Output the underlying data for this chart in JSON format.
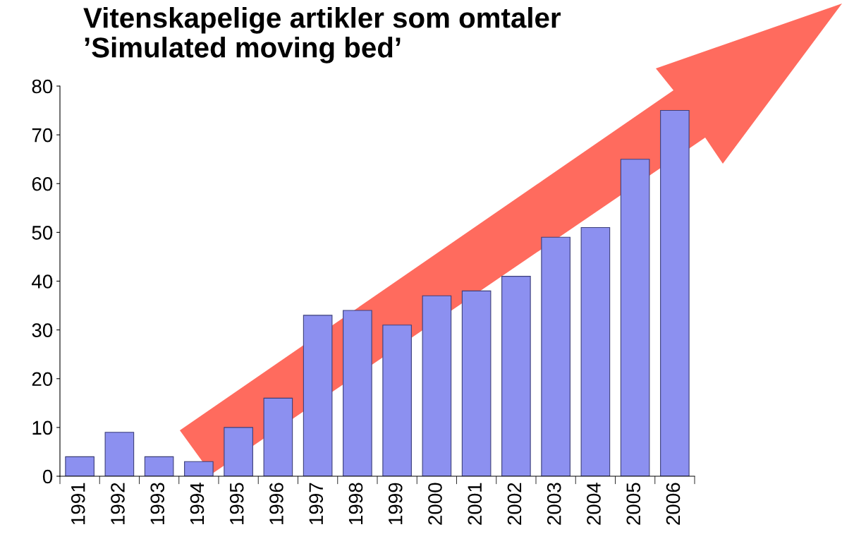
{
  "chart_data": {
    "type": "bar",
    "title": "Vitenskapelige artikler som omtaler\n’Simulated moving bed’",
    "categories": [
      "1991",
      "1992",
      "1993",
      "1994",
      "1995",
      "1996",
      "1997",
      "1998",
      "1999",
      "2000",
      "2001",
      "2002",
      "2003",
      "2004",
      "2005",
      "2006"
    ],
    "values": [
      4,
      9,
      4,
      3,
      10,
      16,
      33,
      34,
      31,
      37,
      38,
      41,
      49,
      51,
      65,
      75
    ],
    "color": "#8c90f0",
    "ylim": [
      0,
      80
    ],
    "yticks": [
      0,
      10,
      20,
      30,
      40,
      50,
      60,
      70,
      80
    ],
    "grid": false
  }
}
